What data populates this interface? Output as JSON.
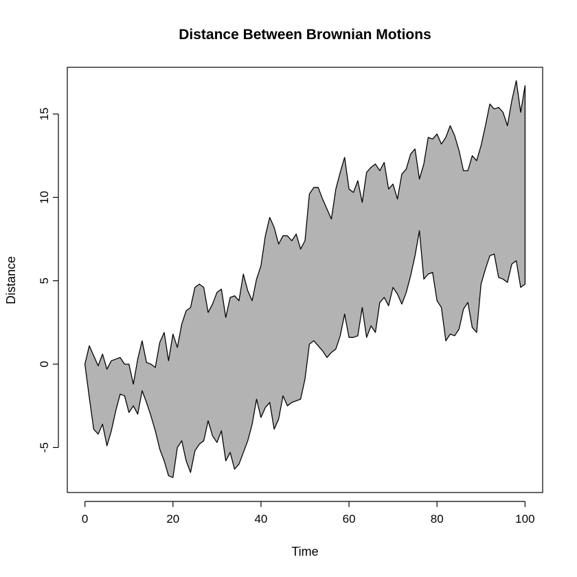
{
  "chart_data": {
    "type": "area",
    "title": "Distance Between Brownian Motions",
    "xlabel": "Time",
    "ylabel": "Distance",
    "xlim": [
      -4,
      104
    ],
    "ylim": [
      -7.7,
      17.8
    ],
    "x_ticks": [
      0,
      20,
      40,
      60,
      80,
      100
    ],
    "y_ticks": [
      -5,
      0,
      5,
      10,
      15
    ],
    "fill_color": "#b3b3b3",
    "line_color": "#000000",
    "grid": false,
    "x": [
      0,
      1,
      2,
      3,
      4,
      5,
      6,
      7,
      8,
      9,
      10,
      11,
      12,
      13,
      14,
      15,
      16,
      17,
      18,
      19,
      20,
      21,
      22,
      23,
      24,
      25,
      26,
      27,
      28,
      29,
      30,
      31,
      32,
      33,
      34,
      35,
      36,
      37,
      38,
      39,
      40,
      41,
      42,
      43,
      44,
      45,
      46,
      47,
      48,
      49,
      50,
      51,
      52,
      53,
      54,
      55,
      56,
      57,
      58,
      59,
      60,
      61,
      62,
      63,
      64,
      65,
      66,
      67,
      68,
      69,
      70,
      71,
      72,
      73,
      74,
      75,
      76,
      77,
      78,
      79,
      80,
      81,
      82,
      83,
      84,
      85,
      86,
      87,
      88,
      89,
      90,
      91,
      92,
      93,
      94,
      95,
      96,
      97,
      98,
      99,
      100
    ],
    "series": [
      {
        "values": [
          0,
          1.1,
          0.5,
          -0.1,
          0.6,
          -0.3,
          0.2,
          0.3,
          0.4,
          0,
          0,
          -1.2,
          0.3,
          1.4,
          0.1,
          0,
          -0.2,
          1.3,
          1.9,
          0.2,
          1.8,
          1,
          2.4,
          3.2,
          3.4,
          4.6,
          4.8,
          4.6,
          3.1,
          3.6,
          4.3,
          4.5,
          2.8,
          4,
          4.1,
          3.8,
          5.4,
          4.4,
          3.8,
          5.1,
          5.9,
          7.7,
          8.8,
          8.2,
          7.2,
          7.7,
          7.7,
          7.4,
          7.8,
          6.9,
          7.4,
          10.2,
          10.6,
          10.6,
          9.9,
          9.3,
          8.7,
          10.5,
          11.5,
          12.4,
          10.5,
          10.3,
          11,
          9.7,
          11.5,
          11.8,
          12,
          11.6,
          12.1,
          10.5,
          10.8,
          9.9,
          11.4,
          11.7,
          12.6,
          12.9,
          11.1,
          12,
          13.6,
          13.5,
          13.8,
          13.2,
          13.6,
          14.3,
          13.7,
          12.8,
          11.6,
          11.6,
          12.5,
          12.2,
          13.1,
          14.3,
          15.6,
          15.3,
          15.4,
          15.1,
          14.3,
          15.8,
          17,
          15.1,
          16.7
        ]
      },
      {
        "values": [
          0,
          -2,
          -3.9,
          -4.2,
          -3.6,
          -4.9,
          -4,
          -2.8,
          -1.8,
          -1.9,
          -2.9,
          -2.5,
          -3,
          -1.6,
          -2.3,
          -3.1,
          -4,
          -5.1,
          -5.8,
          -6.7,
          -6.8,
          -5,
          -4.6,
          -5.8,
          -6.5,
          -5.2,
          -4.8,
          -4.6,
          -3.4,
          -4.3,
          -4.7,
          -4,
          -5.8,
          -5.3,
          -6.3,
          -6,
          -5.3,
          -4.6,
          -3.6,
          -2.1,
          -3.2,
          -2.6,
          -2.3,
          -3.9,
          -3.3,
          -1.9,
          -2.5,
          -2.3,
          -2.2,
          -2.1,
          -0.9,
          1.2,
          1.4,
          1.1,
          0.8,
          0.4,
          0.7,
          0.9,
          1.7,
          3,
          1.6,
          1.6,
          1.7,
          3.4,
          1.6,
          2.3,
          1.9,
          3.7,
          4,
          3.5,
          4.6,
          4.2,
          3.6,
          4.3,
          5.3,
          6.5,
          8,
          5.1,
          5.4,
          5.5,
          3.8,
          3.4,
          1.4,
          1.8,
          1.7,
          2.1,
          3.3,
          3.7,
          2.2,
          1.9,
          4.8,
          5.7,
          6.5,
          6.6,
          5.2,
          5.1,
          4.9,
          6,
          6.2,
          4.6,
          4.8
        ]
      }
    ]
  }
}
